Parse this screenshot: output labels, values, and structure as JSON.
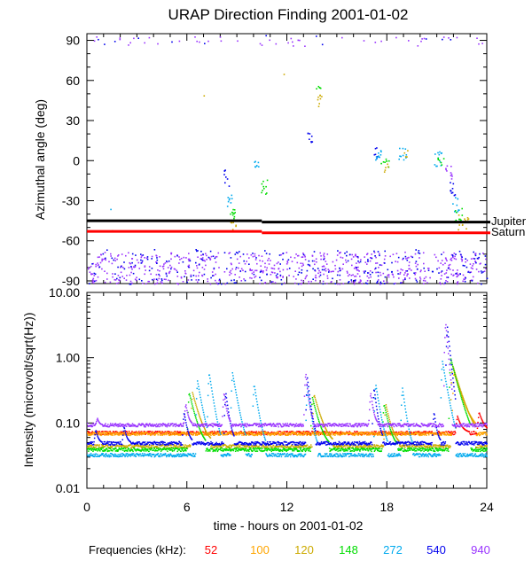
{
  "chart_data": [
    {
      "type": "scatter",
      "title": "URAP Direction Finding  2001-01-02",
      "xlabel": "",
      "ylabel": "Azimuthal angle (deg)",
      "xlim": [
        0,
        24
      ],
      "ylim": [
        -92,
        95
      ],
      "yticks": [
        90,
        60,
        30,
        0,
        -30,
        -60,
        -90
      ],
      "ytick_labels": [
        "90",
        "60",
        "30",
        "0",
        "-30",
        "-60",
        "-90"
      ],
      "reference_lines": [
        {
          "name": "Jupiter",
          "color": "#000000",
          "segments": [
            {
              "x": [
                0,
                10.5
              ],
              "y": -45
            },
            {
              "x": [
                10.5,
                24
              ],
              "y": -46
            }
          ]
        },
        {
          "name": "Saturn",
          "color": "#ff0000",
          "segments": [
            {
              "x": [
                0,
                10.5
              ],
              "y": -53
            },
            {
              "x": [
                10.5,
                24
              ],
              "y": -54
            }
          ]
        }
      ],
      "clusters": [
        {
          "freq": "940",
          "x": [
            0,
            24
          ],
          "y": [
            -92,
            -68
          ],
          "n": 650
        },
        {
          "freq": "540",
          "x": [
            0,
            24
          ],
          "y": [
            -92,
            -66
          ],
          "n": 260
        },
        {
          "freq": "940",
          "x": [
            0,
            24
          ],
          "y": [
            86,
            94
          ],
          "n": 45
        },
        {
          "freq": "540",
          "x": [
            0,
            24
          ],
          "y": [
            86,
            94
          ],
          "n": 12
        },
        {
          "freq": "540",
          "x": [
            8.2,
            8.5
          ],
          "y": [
            -20,
            -5
          ],
          "n": 8
        },
        {
          "freq": "272",
          "x": [
            8.4,
            8.7
          ],
          "y": [
            -35,
            -25
          ],
          "n": 8
        },
        {
          "freq": "148",
          "x": [
            8.5,
            8.9
          ],
          "y": [
            -45,
            -35
          ],
          "n": 10
        },
        {
          "freq": "120",
          "x": [
            8.6,
            9.0
          ],
          "y": [
            -52,
            -42
          ],
          "n": 6
        },
        {
          "freq": "272",
          "x": [
            10.0,
            10.3
          ],
          "y": [
            -5,
            3
          ],
          "n": 8
        },
        {
          "freq": "148",
          "x": [
            10.4,
            10.8
          ],
          "y": [
            -25,
            -12
          ],
          "n": 10
        },
        {
          "freq": "540",
          "x": [
            13.2,
            13.5
          ],
          "y": [
            14,
            22
          ],
          "n": 8
        },
        {
          "freq": "148",
          "x": [
            13.7,
            14.0
          ],
          "y": [
            50,
            56
          ],
          "n": 5
        },
        {
          "freq": "120",
          "x": [
            13.8,
            14.2
          ],
          "y": [
            40,
            52
          ],
          "n": 8
        },
        {
          "freq": "540",
          "x": [
            17.2,
            17.5
          ],
          "y": [
            2,
            10
          ],
          "n": 6
        },
        {
          "freq": "272",
          "x": [
            17.3,
            17.7
          ],
          "y": [
            -5,
            8
          ],
          "n": 10
        },
        {
          "freq": "148",
          "x": [
            17.6,
            18.1
          ],
          "y": [
            -6,
            2
          ],
          "n": 8
        },
        {
          "freq": "120",
          "x": [
            17.8,
            18.2
          ],
          "y": [
            -8,
            -2
          ],
          "n": 5
        },
        {
          "freq": "272",
          "x": [
            18.7,
            19.2
          ],
          "y": [
            1,
            10
          ],
          "n": 10
        },
        {
          "freq": "120",
          "x": [
            19.0,
            19.3
          ],
          "y": [
            2,
            8
          ],
          "n": 4
        },
        {
          "freq": "272",
          "x": [
            20.8,
            21.3
          ],
          "y": [
            -5,
            7
          ],
          "n": 12
        },
        {
          "freq": "148",
          "x": [
            21.0,
            21.4
          ],
          "y": [
            -3,
            3
          ],
          "n": 6
        },
        {
          "freq": "940",
          "x": [
            21.5,
            21.9
          ],
          "y": [
            -15,
            -3
          ],
          "n": 10
        },
        {
          "freq": "540",
          "x": [
            21.7,
            22.1
          ],
          "y": [
            -30,
            -15
          ],
          "n": 10
        },
        {
          "freq": "272",
          "x": [
            21.9,
            22.3
          ],
          "y": [
            -38,
            -25
          ],
          "n": 10
        },
        {
          "freq": "148",
          "x": [
            22.0,
            22.5
          ],
          "y": [
            -45,
            -35
          ],
          "n": 10
        },
        {
          "freq": "120",
          "x": [
            22.2,
            22.9
          ],
          "y": [
            -52,
            -40
          ],
          "n": 12
        }
      ],
      "isolated_points": [
        {
          "freq": "120",
          "x": 7.0,
          "y": 49
        },
        {
          "freq": "120",
          "x": 11.8,
          "y": 65
        },
        {
          "freq": "272",
          "x": 1.4,
          "y": -36
        },
        {
          "freq": "148",
          "x": 1.5,
          "y": -52
        }
      ],
      "right_labels": [
        "Jupiter",
        "Saturn"
      ]
    },
    {
      "type": "line",
      "title": "",
      "xlabel": "time - hours on 2001-01-02",
      "ylabel": "Intensity (microvolt/sqrt(Hz))",
      "xlim": [
        0,
        24
      ],
      "ylim": [
        0.01,
        10
      ],
      "yscale": "log",
      "yticks": [
        0.01,
        0.1,
        1,
        10
      ],
      "ytick_labels": [
        "0.01",
        "0.10",
        "1.00",
        "10.00"
      ],
      "xticks": [
        0,
        6,
        12,
        18,
        24
      ],
      "xtick_labels": [
        "0",
        "6",
        "12",
        "18",
        "24"
      ],
      "series": [
        {
          "name": "52",
          "color": "#ff0000",
          "base": 0.072,
          "events": [
            {
              "t": 22.2,
              "peak": 0.13,
              "w": 0.7
            },
            {
              "t": 23.5,
              "peak": 0.15,
              "w": 0.8
            }
          ]
        },
        {
          "name": "100",
          "color": "#ffa500",
          "base": 0.07,
          "events": [
            {
              "t": 22.0,
              "peak": 0.6,
              "w": 1.3
            }
          ]
        },
        {
          "name": "120",
          "color": "#ccaa00",
          "base": 0.045,
          "events": [
            {
              "t": 6.3,
              "peak": 0.3,
              "w": 1.1
            },
            {
              "t": 13.6,
              "peak": 0.28,
              "w": 1.1
            },
            {
              "t": 17.9,
              "peak": 0.2,
              "w": 0.8
            },
            {
              "t": 21.9,
              "peak": 0.8,
              "w": 1.4
            }
          ]
        },
        {
          "name": "148",
          "color": "#00dd00",
          "base": 0.04,
          "events": [
            {
              "t": 6.1,
              "peak": 0.3,
              "w": 1.0
            },
            {
              "t": 13.5,
              "peak": 0.25,
              "w": 1.0
            },
            {
              "t": 17.8,
              "peak": 0.2,
              "w": 0.8
            },
            {
              "t": 21.8,
              "peak": 1.0,
              "w": 1.2
            }
          ]
        },
        {
          "name": "272",
          "color": "#00aaee",
          "base": 0.033,
          "events": [
            {
              "t": 6.6,
              "peak": 0.45,
              "w": 0.8
            },
            {
              "t": 7.3,
              "peak": 0.6,
              "w": 0.7
            },
            {
              "t": 8.7,
              "peak": 0.6,
              "w": 0.8
            },
            {
              "t": 10.0,
              "peak": 0.4,
              "w": 0.7
            },
            {
              "t": 13.2,
              "peak": 0.35,
              "w": 0.6
            },
            {
              "t": 17.3,
              "peak": 0.4,
              "w": 0.7
            },
            {
              "t": 18.9,
              "peak": 0.35,
              "w": 0.6
            },
            {
              "t": 21.3,
              "peak": 0.9,
              "w": 0.8
            }
          ]
        },
        {
          "name": "540",
          "color": "#0000ee",
          "base": 0.05,
          "events": [
            {
              "t": 0.5,
              "peak": 0.08,
              "w": 0.4
            },
            {
              "t": 2.2,
              "peak": 0.09,
              "w": 0.4
            },
            {
              "t": 5.8,
              "peak": 0.15,
              "w": 0.5
            },
            {
              "t": 8.3,
              "peak": 0.3,
              "w": 0.5
            },
            {
              "t": 13.2,
              "peak": 0.5,
              "w": 0.5
            },
            {
              "t": 17.2,
              "peak": 0.35,
              "w": 0.5
            },
            {
              "t": 20.8,
              "peak": 0.15,
              "w": 0.4
            },
            {
              "t": 21.6,
              "peak": 3.0,
              "w": 0.5
            }
          ]
        },
        {
          "name": "940",
          "color": "#9933ff",
          "base": 0.095,
          "events": [
            {
              "t": 0.6,
              "peak": 0.12,
              "w": 0.3
            },
            {
              "t": 5.9,
              "peak": 0.2,
              "w": 0.4
            },
            {
              "t": 8.2,
              "peak": 0.3,
              "w": 0.4
            },
            {
              "t": 13.1,
              "peak": 0.6,
              "w": 0.4
            },
            {
              "t": 17.0,
              "peak": 0.3,
              "w": 0.4
            },
            {
              "t": 21.5,
              "peak": 3.5,
              "w": 0.4
            }
          ]
        }
      ]
    }
  ],
  "legend": {
    "label": "Frequencies (kHz):",
    "items": [
      {
        "text": "52",
        "color": "#ff0000"
      },
      {
        "text": "100",
        "color": "#ffa500"
      },
      {
        "text": "120",
        "color": "#ccaa00"
      },
      {
        "text": "148",
        "color": "#00dd00"
      },
      {
        "text": "272",
        "color": "#00aaee"
      },
      {
        "text": "540",
        "color": "#0000ee"
      },
      {
        "text": "940",
        "color": "#9933ff"
      }
    ]
  }
}
